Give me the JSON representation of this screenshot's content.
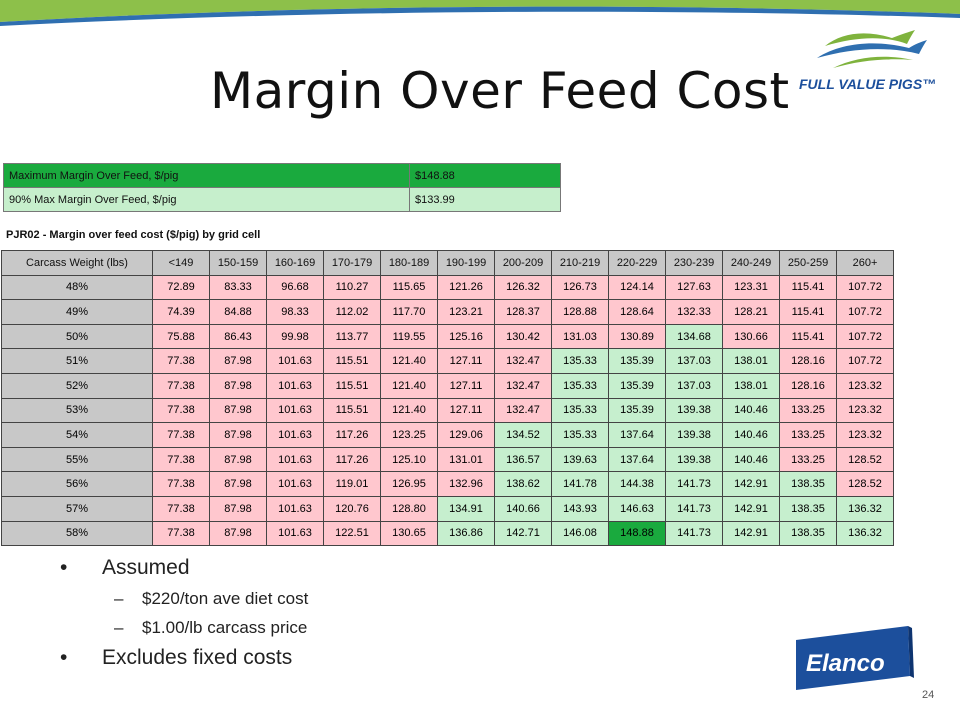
{
  "slide": {
    "title": "Margin Over Feed Cost",
    "page_number": "24",
    "accent_green": "#8dc04a",
    "accent_blue": "#1c4f9c"
  },
  "logos": {
    "full_value_pigs": "FULL VALUE PIGS™",
    "elanco": "Elanco"
  },
  "summary": [
    {
      "label": "Maximum Margin Over Feed, $/pig",
      "value": "$148.88"
    },
    {
      "label": "90% Max Margin Over Feed, $/pig",
      "value": "$133.99"
    }
  ],
  "grid": {
    "caption": "PJR02 - Margin over feed cost ($/pig) by grid cell",
    "corner": "Carcass Weight (lbs)",
    "columns": [
      "<149",
      "150-159",
      "160-169",
      "170-179",
      "180-189",
      "190-199",
      "200-209",
      "210-219",
      "220-229",
      "230-239",
      "240-249",
      "250-259",
      "260+"
    ],
    "rows": [
      {
        "label": "48%",
        "values": [
          "72.89",
          "83.33",
          "96.68",
          "110.27",
          "115.65",
          "121.26",
          "126.32",
          "126.73",
          "124.14",
          "127.63",
          "123.31",
          "115.41",
          "107.72"
        ]
      },
      {
        "label": "49%",
        "values": [
          "74.39",
          "84.88",
          "98.33",
          "112.02",
          "117.70",
          "123.21",
          "128.37",
          "128.88",
          "128.64",
          "132.33",
          "128.21",
          "115.41",
          "107.72"
        ]
      },
      {
        "label": "50%",
        "values": [
          "75.88",
          "86.43",
          "99.98",
          "113.77",
          "119.55",
          "125.16",
          "130.42",
          "131.03",
          "130.89",
          "134.68",
          "130.66",
          "115.41",
          "107.72"
        ]
      },
      {
        "label": "51%",
        "values": [
          "77.38",
          "87.98",
          "101.63",
          "115.51",
          "121.40",
          "127.11",
          "132.47",
          "135.33",
          "135.39",
          "137.03",
          "138.01",
          "128.16",
          "107.72"
        ]
      },
      {
        "label": "52%",
        "values": [
          "77.38",
          "87.98",
          "101.63",
          "115.51",
          "121.40",
          "127.11",
          "132.47",
          "135.33",
          "135.39",
          "137.03",
          "138.01",
          "128.16",
          "123.32"
        ]
      },
      {
        "label": "53%",
        "values": [
          "77.38",
          "87.98",
          "101.63",
          "115.51",
          "121.40",
          "127.11",
          "132.47",
          "135.33",
          "135.39",
          "139.38",
          "140.46",
          "133.25",
          "123.32"
        ]
      },
      {
        "label": "54%",
        "values": [
          "77.38",
          "87.98",
          "101.63",
          "117.26",
          "123.25",
          "129.06",
          "134.52",
          "135.33",
          "137.64",
          "139.38",
          "140.46",
          "133.25",
          "123.32"
        ]
      },
      {
        "label": "55%",
        "values": [
          "77.38",
          "87.98",
          "101.63",
          "117.26",
          "125.10",
          "131.01",
          "136.57",
          "139.63",
          "137.64",
          "139.38",
          "140.46",
          "133.25",
          "128.52"
        ]
      },
      {
        "label": "56%",
        "values": [
          "77.38",
          "87.98",
          "101.63",
          "119.01",
          "126.95",
          "132.96",
          "138.62",
          "141.78",
          "144.38",
          "141.73",
          "142.91",
          "138.35",
          "128.52"
        ]
      },
      {
        "label": "57%",
        "values": [
          "77.38",
          "87.98",
          "101.63",
          "120.76",
          "128.80",
          "134.91",
          "140.66",
          "143.93",
          "146.63",
          "141.73",
          "142.91",
          "138.35",
          "136.32"
        ]
      },
      {
        "label": "58%",
        "values": [
          "77.38",
          "87.98",
          "101.63",
          "122.51",
          "130.65",
          "136.86",
          "142.71",
          "146.08",
          "148.88",
          "141.73",
          "142.91",
          "138.35",
          "136.32"
        ]
      }
    ]
  },
  "bullets": {
    "assumed": "Assumed",
    "diet_cost": " $220/ton ave diet cost",
    "carcass_price": "$1.00/lb carcass price",
    "excludes": "Excludes fixed costs",
    "dash": "–",
    "dot": "•"
  }
}
